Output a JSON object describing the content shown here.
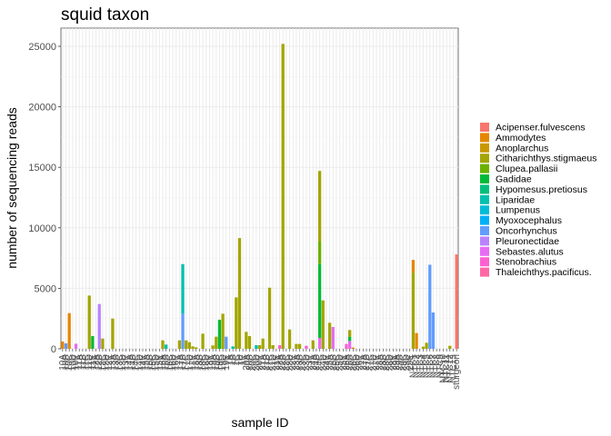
{
  "chart_data": {
    "type": "bar",
    "stacked": true,
    "title": "squid taxon",
    "xlabel": "sample ID",
    "ylabel": "number of sequencing reads",
    "ylim": [
      0,
      26500
    ],
    "yticks": [
      0,
      5000,
      10000,
      15000,
      20000,
      25000
    ],
    "grid": true,
    "legend_position": "right",
    "legend": [
      {
        "name": "Acipenser.fulvescens",
        "color": "#F8766D"
      },
      {
        "name": "Ammodytes",
        "color": "#E58700"
      },
      {
        "name": "Anoplarchus",
        "color": "#C99800"
      },
      {
        "name": "Citharichthys.stigmaeus",
        "color": "#A3A500"
      },
      {
        "name": "Clupea.pallasii",
        "color": "#6BB100"
      },
      {
        "name": "Gadidae",
        "color": "#00BA38"
      },
      {
        "name": "Hypomesus.pretiosus",
        "color": "#00BF7D"
      },
      {
        "name": "Liparidae",
        "color": "#00C0AF"
      },
      {
        "name": "Lumpenus",
        "color": "#00BCD8"
      },
      {
        "name": "Myoxocephalus",
        "color": "#00B0F6"
      },
      {
        "name": "Oncorhynchus",
        "color": "#619CFF"
      },
      {
        "name": "Pleuronectidae",
        "color": "#B983FF"
      },
      {
        "name": "Sebastes.alutus",
        "color": "#E76BF3"
      },
      {
        "name": "Stenobrachius",
        "color": "#FD61D1"
      },
      {
        "name": "Thaleichthys.pacificus.",
        "color": "#FF67A4"
      }
    ],
    "categories": [
      "10A",
      "10B",
      "10C",
      "10D",
      "10E",
      "11A",
      "11B",
      "11C",
      "11D",
      "11E",
      "12A",
      "12B",
      "12C",
      "12D",
      "12E",
      "13A",
      "13B",
      "13C",
      "13D",
      "13E",
      "14A",
      "14B",
      "14C",
      "14D",
      "14E",
      "15A",
      "15B",
      "15C",
      "15D",
      "15E",
      "16A",
      "16B",
      "16C",
      "16D",
      "16E",
      "17A",
      "17B",
      "17C",
      "17D",
      "17E",
      "18A",
      "18B",
      "18C",
      "18D",
      "18E",
      "19A",
      "19B",
      "19C",
      "19D",
      "19E",
      "1A",
      "1B",
      "1C",
      "1D",
      "1E",
      "20A",
      "20B",
      "20C",
      "20D",
      "20E",
      "21A",
      "21B",
      "21C",
      "21D",
      "21E",
      "22A",
      "22B",
      "22C",
      "22D",
      "22E",
      "23A",
      "23B",
      "23C",
      "23D",
      "23E",
      "24A",
      "24B",
      "24C",
      "24D",
      "24E",
      "25A",
      "25B",
      "25C",
      "25D",
      "25E",
      "26A",
      "26B",
      "26C",
      "26D",
      "26E",
      "27A",
      "27B",
      "27C",
      "27D",
      "27E",
      "28A",
      "28B",
      "28C",
      "28D",
      "28E",
      "29A",
      "29B",
      "29C",
      "29D",
      "29E",
      "NTC1",
      "NTC2",
      "NTC3",
      "NTC4",
      "NTC5",
      "NTC6",
      "NTC7",
      "NTC8",
      "NTC9",
      "NTC10",
      "NTC11",
      "NTC12",
      "NTC13",
      "sturgeon"
    ],
    "xtick_labels_shown": [
      "10A",
      "10B",
      "10C",
      "10D",
      "10E",
      "11A",
      "11B",
      "11C",
      "11D",
      "11E",
      "12A",
      "12B",
      "12C",
      "12D",
      "12E",
      "13A",
      "13B",
      "13C",
      "13D",
      "13E",
      "14A",
      "14B",
      "14C",
      "14D",
      "14E",
      "15A",
      "15B",
      "15C",
      "15D",
      "15E",
      "16A",
      "16B",
      "16C",
      "16D",
      "16E",
      "17A",
      "17B",
      "17C",
      "17D",
      "17E",
      "18A",
      "18B",
      "18C",
      "18D",
      "18E",
      "19A",
      "19B",
      "19C",
      "19D",
      "19E",
      "1A",
      "1B",
      "1C",
      "1D",
      "1E",
      "20A",
      "20B",
      "20C",
      "20D",
      "20E",
      "21A",
      "21B",
      "21C",
      "21D",
      "21E",
      "22A",
      "22B",
      "22C",
      "22D",
      "22E",
      "23A",
      "23B",
      "23C",
      "23D",
      "23E",
      "24A",
      "24B",
      "24C",
      "24D",
      "24E",
      "25A",
      "25B",
      "25C",
      "25D",
      "25E",
      "26A",
      "26B",
      "26C",
      "26D",
      "26E",
      "27A",
      "27B",
      "27C",
      "27D",
      "27E",
      "28A",
      "28B",
      "28C",
      "28D",
      "28E",
      "29A",
      "29B",
      "29C",
      "29D",
      "29E",
      "NTC1",
      "NTC2",
      "NTC3",
      "NTC4",
      "NTC5",
      "NTC6",
      "NTC7",
      "NTC8",
      "NTC9",
      "NTC10",
      "NTC11",
      "NTC12",
      "NTC13",
      "sturgeon"
    ],
    "bars": [
      {
        "id": "10A",
        "segments": [
          {
            "taxon": "Ammodytes",
            "value": 600
          }
        ]
      },
      {
        "id": "10B",
        "segments": [
          {
            "taxon": "Oncorhynchus",
            "value": 450
          }
        ]
      },
      {
        "id": "10C",
        "segments": [
          {
            "taxon": "Ammodytes",
            "value": 2950
          }
        ]
      },
      {
        "id": "10E",
        "segments": [
          {
            "taxon": "Sebastes.alutus",
            "value": 420
          }
        ]
      },
      {
        "id": "11D",
        "segments": [
          {
            "taxon": "Citharichthys.stigmaeus",
            "value": 4400
          }
        ]
      },
      {
        "id": "11E",
        "segments": [
          {
            "taxon": "Gadidae",
            "value": 1050
          }
        ]
      },
      {
        "id": "12B",
        "segments": [
          {
            "taxon": "Pleuronectidae",
            "value": 3700
          }
        ]
      },
      {
        "id": "12C",
        "segments": [
          {
            "taxon": "Citharichthys.stigmaeus",
            "value": 850
          }
        ]
      },
      {
        "id": "13A",
        "segments": [
          {
            "taxon": "Citharichthys.stigmaeus",
            "value": 2500
          }
        ]
      },
      {
        "id": "16A",
        "segments": [
          {
            "taxon": "Citharichthys.stigmaeus",
            "value": 700
          }
        ]
      },
      {
        "id": "16B",
        "segments": [
          {
            "taxon": "Liparidae",
            "value": 350
          }
        ]
      },
      {
        "id": "17A",
        "segments": [
          {
            "taxon": "Citharichthys.stigmaeus",
            "value": 700
          }
        ]
      },
      {
        "id": "17B",
        "segments": [
          {
            "taxon": "Oncorhynchus",
            "value": 2900
          },
          {
            "taxon": "Liparidae",
            "value": 4100
          }
        ]
      },
      {
        "id": "17C",
        "segments": [
          {
            "taxon": "Citharichthys.stigmaeus",
            "value": 700
          }
        ]
      },
      {
        "id": "17D",
        "segments": [
          {
            "taxon": "Citharichthys.stigmaeus",
            "value": 550
          }
        ]
      },
      {
        "id": "17E",
        "segments": [
          {
            "taxon": "Citharichthys.stigmaeus",
            "value": 200
          }
        ]
      },
      {
        "id": "18A",
        "segments": [
          {
            "taxon": "Citharichthys.stigmaeus",
            "value": 120
          }
        ]
      },
      {
        "id": "18C",
        "segments": [
          {
            "taxon": "Citharichthys.stigmaeus",
            "value": 1250
          }
        ]
      },
      {
        "id": "19A",
        "segments": [
          {
            "taxon": "Citharichthys.stigmaeus",
            "value": 280
          }
        ]
      },
      {
        "id": "19B",
        "segments": [
          {
            "taxon": "Citharichthys.stigmaeus",
            "value": 1000
          }
        ]
      },
      {
        "id": "19C",
        "segments": [
          {
            "taxon": "Gadidae",
            "value": 2400
          }
        ]
      },
      {
        "id": "19D",
        "segments": [
          {
            "taxon": "Citharichthys.stigmaeus",
            "value": 2900
          }
        ]
      },
      {
        "id": "19E",
        "segments": [
          {
            "taxon": "Oncorhynchus",
            "value": 1000
          }
        ]
      },
      {
        "id": "1B",
        "segments": [
          {
            "taxon": "Liparidae",
            "value": 200
          }
        ]
      },
      {
        "id": "1C",
        "segments": [
          {
            "taxon": "Citharichthys.stigmaeus",
            "value": 4250
          }
        ]
      },
      {
        "id": "1D",
        "segments": [
          {
            "taxon": "Citharichthys.stigmaeus",
            "value": 9150
          }
        ]
      },
      {
        "id": "20A",
        "segments": [
          {
            "taxon": "Citharichthys.stigmaeus",
            "value": 1400
          }
        ]
      },
      {
        "id": "20B",
        "segments": [
          {
            "taxon": "Citharichthys.stigmaeus",
            "value": 1050
          }
        ]
      },
      {
        "id": "20D",
        "segments": [
          {
            "taxon": "Liparidae",
            "value": 300
          }
        ]
      },
      {
        "id": "20E",
        "segments": [
          {
            "taxon": "Citharichthys.stigmaeus",
            "value": 300
          }
        ]
      },
      {
        "id": "21A",
        "segments": [
          {
            "taxon": "Citharichthys.stigmaeus",
            "value": 850
          }
        ]
      },
      {
        "id": "21C",
        "segments": [
          {
            "taxon": "Citharichthys.stigmaeus",
            "value": 5050
          }
        ]
      },
      {
        "id": "21D",
        "segments": [
          {
            "taxon": "Citharichthys.stigmaeus",
            "value": 300
          }
        ]
      },
      {
        "id": "22A",
        "segments": [
          {
            "taxon": "Stenobrachius",
            "value": 300
          }
        ]
      },
      {
        "id": "22B",
        "segments": [
          {
            "taxon": "Citharichthys.stigmaeus",
            "value": 25200
          }
        ]
      },
      {
        "id": "22D",
        "segments": [
          {
            "taxon": "Citharichthys.stigmaeus",
            "value": 1600
          }
        ]
      },
      {
        "id": "23A",
        "segments": [
          {
            "taxon": "Citharichthys.stigmaeus",
            "value": 400
          }
        ]
      },
      {
        "id": "23B",
        "segments": [
          {
            "taxon": "Citharichthys.stigmaeus",
            "value": 400
          }
        ]
      },
      {
        "id": "23D",
        "segments": [
          {
            "taxon": "Stenobrachius",
            "value": 250
          }
        ]
      },
      {
        "id": "24A",
        "segments": [
          {
            "taxon": "Citharichthys.stigmaeus",
            "value": 700
          }
        ]
      },
      {
        "id": "24C",
        "segments": [
          {
            "taxon": "Sebastes.alutus",
            "value": 900
          },
          {
            "taxon": "Gadidae",
            "value": 6100
          },
          {
            "taxon": "Clupea.pallasii",
            "value": 1900
          },
          {
            "taxon": "Citharichthys.stigmaeus",
            "value": 5800
          }
        ]
      },
      {
        "id": "24D",
        "segments": [
          {
            "taxon": "Citharichthys.stigmaeus",
            "value": 4000
          }
        ]
      },
      {
        "id": "25A",
        "segments": [
          {
            "taxon": "Citharichthys.stigmaeus",
            "value": 2150
          }
        ]
      },
      {
        "id": "25B",
        "segments": [
          {
            "taxon": "Sebastes.alutus",
            "value": 1800
          }
        ]
      },
      {
        "id": "26A",
        "segments": [
          {
            "taxon": "Stenobrachius",
            "value": 400
          }
        ]
      },
      {
        "id": "26B",
        "segments": [
          {
            "taxon": "Sebastes.alutus",
            "value": 650
          },
          {
            "taxon": "Gadidae",
            "value": 350
          },
          {
            "taxon": "Citharichthys.stigmaeus",
            "value": 550
          }
        ]
      },
      {
        "id": "26C",
        "segments": [
          {
            "taxon": "Ammodytes",
            "value": 100
          }
        ]
      },
      {
        "id": "NTC1",
        "segments": [
          {
            "taxon": "Citharichthys.stigmaeus",
            "value": 6300
          },
          {
            "taxon": "Ammodytes",
            "value": 1050
          }
        ]
      },
      {
        "id": "NTC2",
        "segments": [
          {
            "taxon": "Ammodytes",
            "value": 1300
          }
        ]
      },
      {
        "id": "NTC4",
        "segments": [
          {
            "taxon": "Citharichthys.stigmaeus",
            "value": 180
          }
        ]
      },
      {
        "id": "NTC5",
        "segments": [
          {
            "taxon": "Citharichthys.stigmaeus",
            "value": 500
          }
        ]
      },
      {
        "id": "NTC6",
        "segments": [
          {
            "taxon": "Oncorhynchus",
            "value": 6950
          }
        ]
      },
      {
        "id": "NTC7",
        "segments": [
          {
            "taxon": "Oncorhynchus",
            "value": 3000
          }
        ]
      },
      {
        "id": "NTC12",
        "segments": [
          {
            "taxon": "Citharichthys.stigmaeus",
            "value": 250
          }
        ]
      },
      {
        "id": "sturgeon",
        "segments": [
          {
            "taxon": "Acipenser.fulvescens",
            "value": 7800
          }
        ]
      }
    ]
  }
}
